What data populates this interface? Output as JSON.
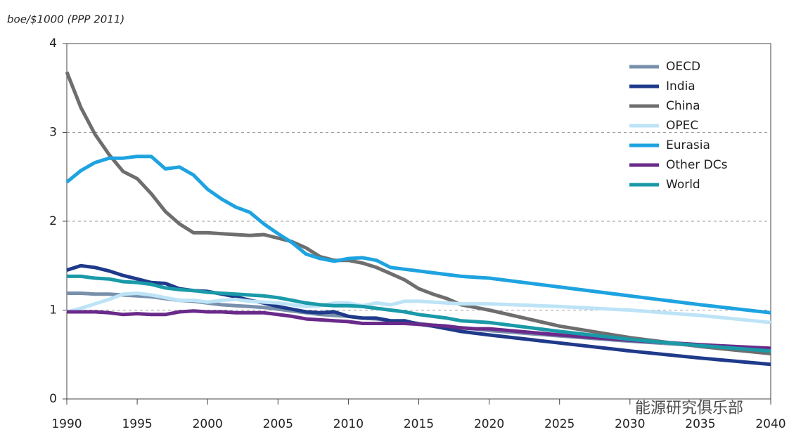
{
  "chart_data": {
    "type": "line",
    "y_label": "boe/$1000 (PPP 2011)",
    "watermark": "能源研究俱乐部",
    "x": [
      1990,
      1991,
      1992,
      1993,
      1994,
      1995,
      1996,
      1997,
      1998,
      1999,
      2000,
      2001,
      2002,
      2003,
      2004,
      2005,
      2006,
      2007,
      2008,
      2009,
      2010,
      2011,
      2012,
      2013,
      2014,
      2015,
      2016,
      2017,
      2018,
      2019,
      2020,
      2025,
      2030,
      2035,
      2040
    ],
    "xlim": [
      1990,
      2040
    ],
    "xticks": [
      1990,
      1995,
      2000,
      2005,
      2010,
      2015,
      2020,
      2025,
      2030,
      2035,
      2040
    ],
    "ylim": [
      0,
      4
    ],
    "yticks": [
      0,
      1,
      2,
      3,
      4
    ],
    "grid": true,
    "legend": "upper right",
    "series": [
      {
        "name": "OECD",
        "color": "#7990ac",
        "values": [
          1.19,
          1.19,
          1.18,
          1.18,
          1.17,
          1.16,
          1.15,
          1.13,
          1.11,
          1.1,
          1.08,
          1.06,
          1.05,
          1.04,
          1.03,
          1.01,
          0.99,
          0.97,
          0.95,
          0.94,
          0.93,
          0.91,
          0.9,
          0.88,
          0.87,
          0.85,
          0.83,
          0.82,
          0.8,
          0.79,
          0.77,
          0.71,
          0.65,
          0.6,
          0.55
        ]
      },
      {
        "name": "India",
        "color": "#1f3a8a",
        "values": [
          1.45,
          1.5,
          1.48,
          1.44,
          1.39,
          1.35,
          1.31,
          1.3,
          1.24,
          1.22,
          1.21,
          1.18,
          1.15,
          1.11,
          1.08,
          1.04,
          1.01,
          0.98,
          0.97,
          0.98,
          0.93,
          0.91,
          0.91,
          0.88,
          0.88,
          0.84,
          0.82,
          0.79,
          0.76,
          0.74,
          0.72,
          0.63,
          0.54,
          0.46,
          0.39
        ]
      },
      {
        "name": "China",
        "color": "#6e6e6e",
        "values": [
          3.68,
          3.28,
          2.98,
          2.75,
          2.56,
          2.48,
          2.31,
          2.11,
          1.97,
          1.87,
          1.87,
          1.86,
          1.85,
          1.84,
          1.85,
          1.81,
          1.77,
          1.7,
          1.6,
          1.56,
          1.56,
          1.53,
          1.48,
          1.41,
          1.34,
          1.24,
          1.18,
          1.13,
          1.06,
          1.03,
          1.0,
          0.82,
          0.69,
          0.59,
          0.51
        ]
      },
      {
        "name": "OPEC",
        "color": "#bde3f7",
        "values": [
          0.98,
          1.02,
          1.07,
          1.12,
          1.18,
          1.19,
          1.17,
          1.14,
          1.11,
          1.11,
          1.09,
          1.11,
          1.12,
          1.1,
          1.09,
          1.08,
          1.06,
          1.04,
          1.05,
          1.08,
          1.08,
          1.05,
          1.08,
          1.06,
          1.1,
          1.1,
          1.09,
          1.08,
          1.07,
          1.07,
          1.07,
          1.04,
          1.0,
          0.94,
          0.86
        ]
      },
      {
        "name": "Eurasia",
        "color": "#1ea3e0",
        "values": [
          2.44,
          2.57,
          2.66,
          2.71,
          2.71,
          2.73,
          2.73,
          2.59,
          2.61,
          2.52,
          2.36,
          2.25,
          2.16,
          2.1,
          1.97,
          1.86,
          1.76,
          1.63,
          1.58,
          1.55,
          1.58,
          1.59,
          1.56,
          1.48,
          1.46,
          1.44,
          1.42,
          1.4,
          1.38,
          1.37,
          1.36,
          1.26,
          1.16,
          1.06,
          0.97
        ]
      },
      {
        "name": "Other DCs",
        "color": "#6a2a8a",
        "values": [
          0.98,
          0.98,
          0.98,
          0.97,
          0.95,
          0.96,
          0.95,
          0.95,
          0.98,
          0.99,
          0.98,
          0.98,
          0.97,
          0.97,
          0.97,
          0.95,
          0.93,
          0.9,
          0.89,
          0.88,
          0.87,
          0.85,
          0.85,
          0.85,
          0.85,
          0.84,
          0.83,
          0.82,
          0.8,
          0.79,
          0.79,
          0.72,
          0.66,
          0.61,
          0.57
        ]
      },
      {
        "name": "World",
        "color": "#1a9aa8",
        "values": [
          1.38,
          1.38,
          1.36,
          1.35,
          1.32,
          1.31,
          1.29,
          1.25,
          1.23,
          1.22,
          1.2,
          1.19,
          1.18,
          1.17,
          1.16,
          1.14,
          1.11,
          1.08,
          1.06,
          1.05,
          1.05,
          1.04,
          1.02,
          1.0,
          0.98,
          0.95,
          0.93,
          0.91,
          0.88,
          0.87,
          0.86,
          0.76,
          0.67,
          0.6,
          0.54
        ]
      }
    ]
  }
}
